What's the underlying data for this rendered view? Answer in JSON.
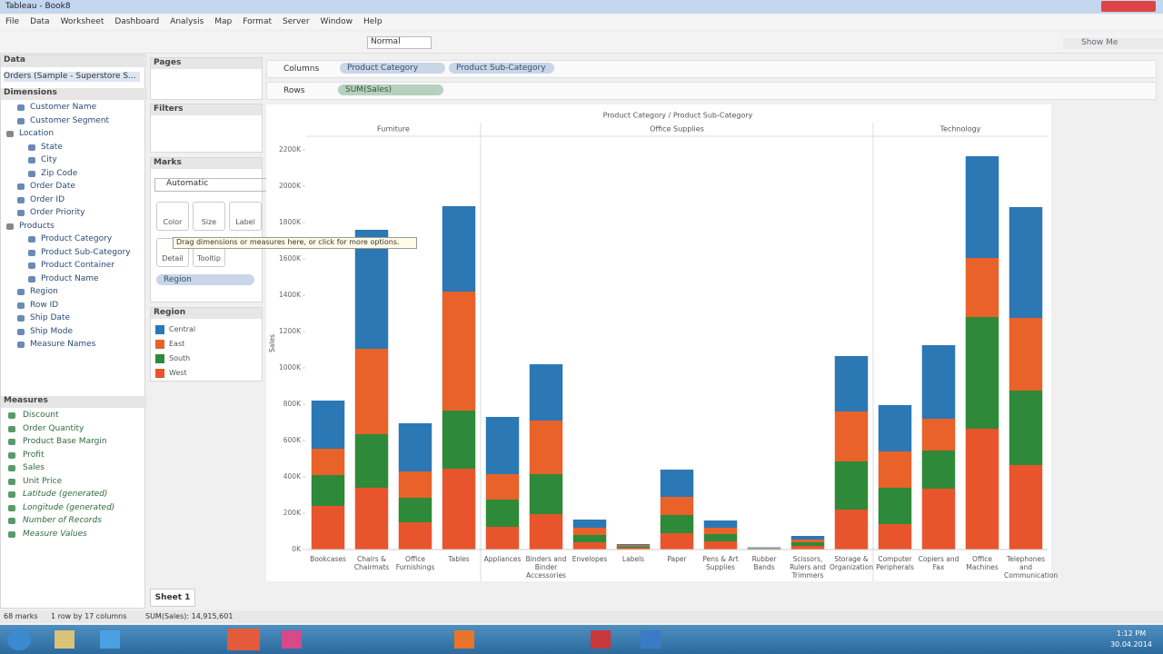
{
  "window_title": "Tableau - Book8",
  "menu": [
    "File",
    "Data",
    "Worksheet",
    "Dashboard",
    "Analysis",
    "Map",
    "Format",
    "Server",
    "Window",
    "Help"
  ],
  "toolbar": {
    "fit": "Normal",
    "show_me": "Show Me"
  },
  "data_pane": {
    "title": "Data",
    "source": "Orders (Sample - Superstore S...",
    "dimensions_title": "Dimensions",
    "dimensions": [
      "Customer Name",
      "Customer Segment",
      "Location",
      "State",
      "City",
      "Zip Code",
      "Order Date",
      "Order ID",
      "Order Priority",
      "Products",
      "Product Category",
      "Product Sub-Category",
      "Product Container",
      "Product Name",
      "Region",
      "Row ID",
      "Ship Date",
      "Ship Mode",
      "Measure Names"
    ],
    "measures_title": "Measures",
    "measures": [
      "Discount",
      "Order Quantity",
      "Product Base Margin",
      "Profit",
      "Sales",
      "Unit Price",
      "Latitude (generated)",
      "Longitude (generated)",
      "Number of Records",
      "Measure Values"
    ]
  },
  "shelves": {
    "pages": "Pages",
    "filters": "Filters",
    "columns": "Columns",
    "columns_pills": [
      "Product Category",
      "Product Sub-Category"
    ],
    "rows": "Rows",
    "rows_pills": [
      "SUM(Sales)"
    ]
  },
  "marks": {
    "title": "Marks",
    "type": "Automatic",
    "buttons": [
      "Color",
      "Size",
      "Label",
      "Detail",
      "Tooltip"
    ],
    "tooltip": "Drag dimensions or measures here, or click for more options.",
    "pill": "Region"
  },
  "chart_data": {
    "type": "stacked_bar",
    "title": "Product Category / Product Sub-Category",
    "y_label": "Sales",
    "legend_title": "Region",
    "panes": [
      {
        "name": "Furniture",
        "categories": [
          "Bookcases",
          "Chairs & Chairmats",
          "Office Furnishings",
          "Tables"
        ]
      },
      {
        "name": "Office Supplies",
        "categories": [
          "Appliances",
          "Binders and Binder Accessories",
          "Envelopes",
          "Labels",
          "Paper",
          "Pens & Art Supplies",
          "Rubber Bands",
          "Scissors, Rulers and Trimmers",
          "Storage & Organization"
        ]
      },
      {
        "name": "Technology",
        "categories": [
          "Computer Peripherals",
          "Copiers and Fax",
          "Office Machines",
          "Telephones and Communication"
        ]
      }
    ],
    "series": [
      {
        "name": "Central",
        "color": "#2b78b5",
        "values": [
          265000,
          655000,
          265000,
          470000,
          315000,
          310000,
          45000,
          5000,
          150000,
          40000,
          3000,
          20000,
          305000,
          255000,
          405000,
          560000,
          610000
        ]
      },
      {
        "name": "East",
        "color": "#e8622a",
        "values": [
          145000,
          470000,
          145000,
          655000,
          140000,
          295000,
          40000,
          7000,
          100000,
          35000,
          3000,
          15000,
          275000,
          200000,
          175000,
          325000,
          400000
        ]
      },
      {
        "name": "South",
        "color": "#2e8a38",
        "values": [
          170000,
          295000,
          135000,
          320000,
          150000,
          220000,
          40000,
          8000,
          100000,
          40000,
          3000,
          20000,
          265000,
          200000,
          210000,
          615000,
          410000
        ]
      },
      {
        "name": "West",
        "color": "#e8552c",
        "values": [
          240000,
          340000,
          150000,
          445000,
          125000,
          195000,
          40000,
          10000,
          90000,
          45000,
          3000,
          20000,
          220000,
          140000,
          335000,
          665000,
          465000
        ]
      }
    ],
    "ylim": [
      0,
      2275000
    ],
    "yticks": [
      {
        "value": 0,
        "label": "0K"
      },
      {
        "value": 200000,
        "label": "200K"
      },
      {
        "value": 400000,
        "label": "400K"
      },
      {
        "value": 600000,
        "label": "600K"
      },
      {
        "value": 800000,
        "label": "800K"
      },
      {
        "value": 1000000,
        "label": "1000K"
      },
      {
        "value": 1200000,
        "label": "1200K"
      },
      {
        "value": 1400000,
        "label": "1400K"
      },
      {
        "value": 1600000,
        "label": "1600K"
      },
      {
        "value": 1800000,
        "label": "1800K"
      },
      {
        "value": 2000000,
        "label": "2000K"
      },
      {
        "value": 2200000,
        "label": "2200K"
      }
    ]
  },
  "sheet_tab": "Sheet 1",
  "status": [
    "68 marks",
    "1 row by 17 columns",
    "SUM(Sales): 14,915,601"
  ],
  "clock": {
    "time": "1:12 PM",
    "date": "30.04.2014"
  }
}
